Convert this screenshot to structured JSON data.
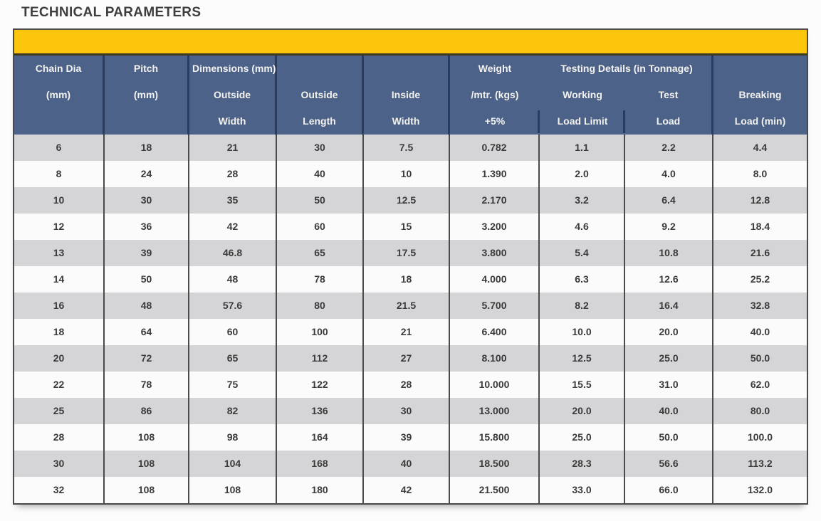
{
  "page": {
    "title": "TECHNICAL PARAMETERS"
  },
  "colors": {
    "banner_yellow": "#FCC60D",
    "header_blue": "#4C6288",
    "header_divider_navy": "#2C3C5F",
    "row_gray": "#D5D5D7",
    "row_white": "#FBFBFB",
    "outer_border": "#4A4A4A",
    "data_text": "#3B3B3B",
    "header_text": "#F3F2EE"
  },
  "table": {
    "header": {
      "groups": {
        "dimensions_label": "Dimensions (mm)",
        "testing_label": "Testing Details (in Tonnage)"
      },
      "columns": [
        {
          "id": "chain_dia",
          "lines": [
            "Chain Dia",
            "(mm)",
            ""
          ]
        },
        {
          "id": "pitch",
          "lines": [
            "Pitch",
            "(mm)",
            ""
          ]
        },
        {
          "id": "outside_width",
          "lines": [
            "",
            "Outside",
            "Width"
          ]
        },
        {
          "id": "outside_length",
          "lines": [
            "",
            "Outside",
            "Length"
          ]
        },
        {
          "id": "inside_width",
          "lines": [
            "",
            "Inside",
            "Width"
          ]
        },
        {
          "id": "weight",
          "lines": [
            "Weight",
            "/mtr. (kgs)",
            "+5%"
          ]
        },
        {
          "id": "working_load_limit",
          "lines": [
            "",
            "Working",
            "Load Limit"
          ]
        },
        {
          "id": "test_load",
          "lines": [
            "",
            "Test",
            "Load"
          ]
        },
        {
          "id": "breaking_load",
          "lines": [
            "",
            "Breaking",
            "Load (min)"
          ]
        }
      ]
    },
    "rows": [
      [
        "6",
        "18",
        "21",
        "30",
        "7.5",
        "0.782",
        "1.1",
        "2.2",
        "4.4"
      ],
      [
        "8",
        "24",
        "28",
        "40",
        "10",
        "1.390",
        "2.0",
        "4.0",
        "8.0"
      ],
      [
        "10",
        "30",
        "35",
        "50",
        "12.5",
        "2.170",
        "3.2",
        "6.4",
        "12.8"
      ],
      [
        "12",
        "36",
        "42",
        "60",
        "15",
        "3.200",
        "4.6",
        "9.2",
        "18.4"
      ],
      [
        "13",
        "39",
        "46.8",
        "65",
        "17.5",
        "3.800",
        "5.4",
        "10.8",
        "21.6"
      ],
      [
        "14",
        "50",
        "48",
        "78",
        "18",
        "4.000",
        "6.3",
        "12.6",
        "25.2"
      ],
      [
        "16",
        "48",
        "57.6",
        "80",
        "21.5",
        "5.700",
        "8.2",
        "16.4",
        "32.8"
      ],
      [
        "18",
        "64",
        "60",
        "100",
        "21",
        "6.400",
        "10.0",
        "20.0",
        "40.0"
      ],
      [
        "20",
        "72",
        "65",
        "112",
        "27",
        "8.100",
        "12.5",
        "25.0",
        "50.0"
      ],
      [
        "22",
        "78",
        "75",
        "122",
        "28",
        "10.000",
        "15.5",
        "31.0",
        "62.0"
      ],
      [
        "25",
        "86",
        "82",
        "136",
        "30",
        "13.000",
        "20.0",
        "40.0",
        "80.0"
      ],
      [
        "28",
        "108",
        "98",
        "164",
        "39",
        "15.800",
        "25.0",
        "50.0",
        "100.0"
      ],
      [
        "30",
        "108",
        "104",
        "168",
        "40",
        "18.500",
        "28.3",
        "56.6",
        "113.2"
      ],
      [
        "32",
        "108",
        "108",
        "180",
        "42",
        "21.500",
        "33.0",
        "66.0",
        "132.0"
      ]
    ]
  }
}
